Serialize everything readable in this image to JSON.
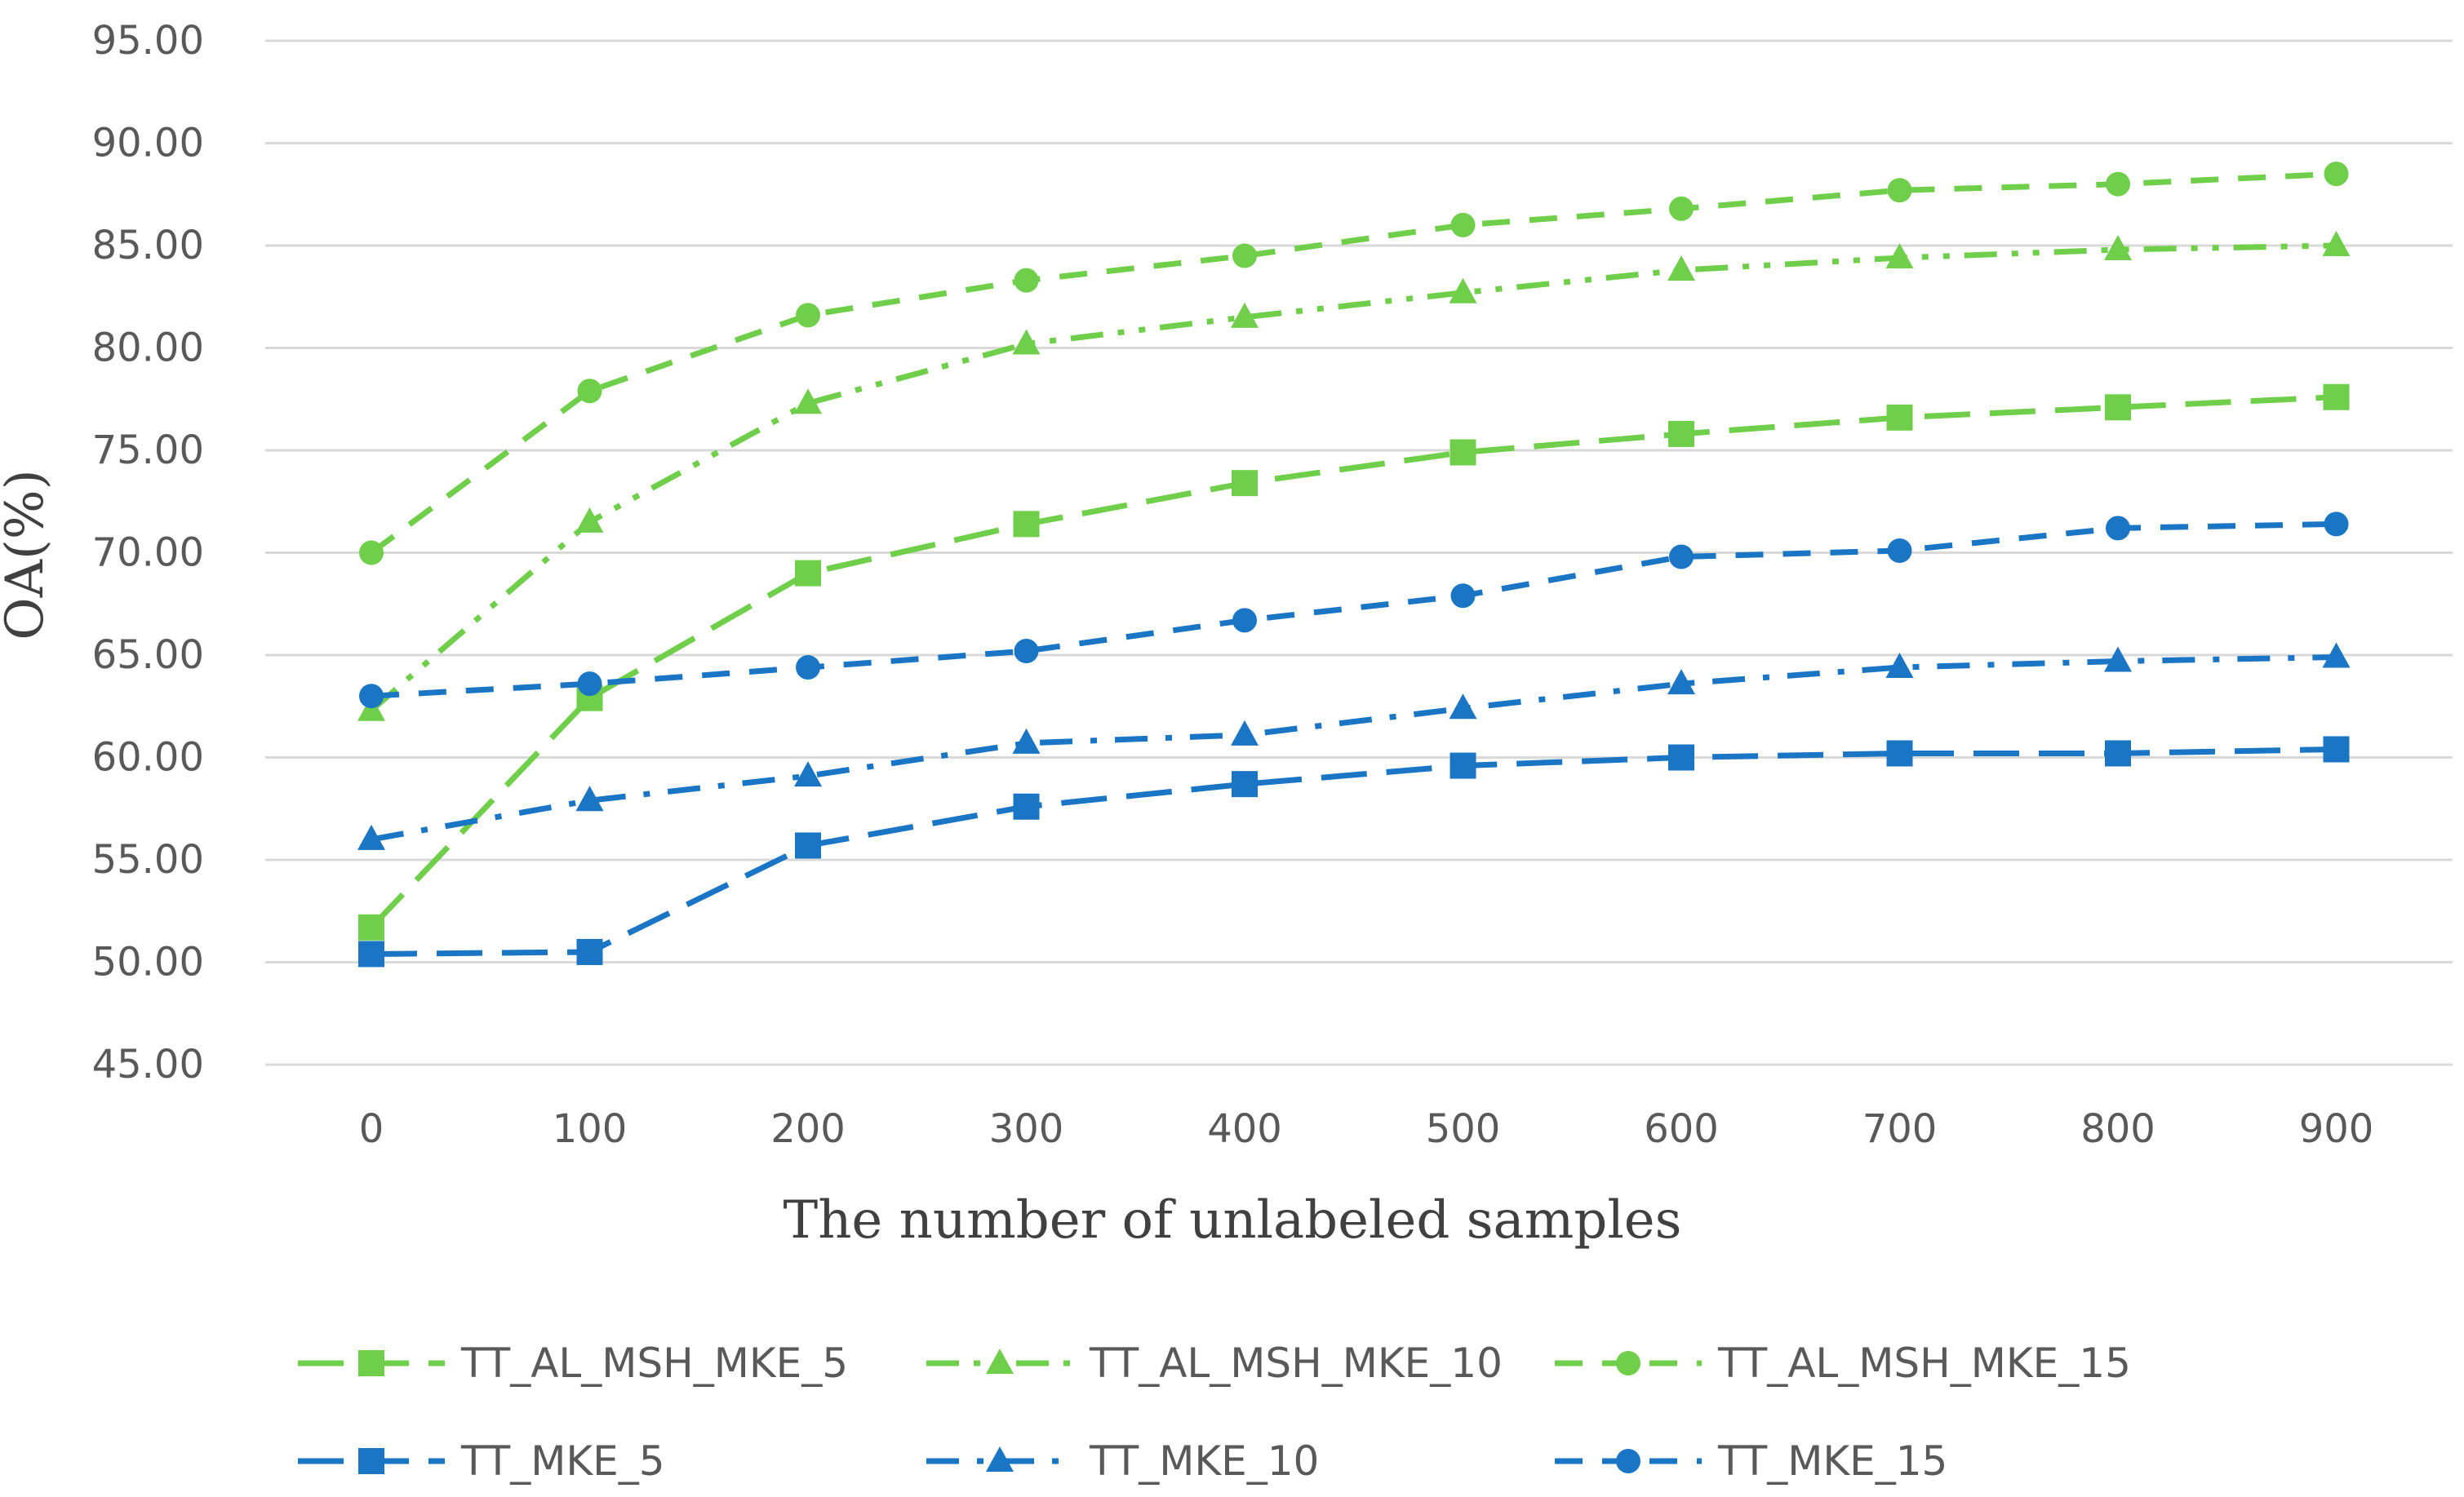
{
  "chart_data": {
    "type": "line",
    "title": "",
    "xlabel": "The number of unlabeled samples",
    "ylabel": "OA(%)",
    "ylim": [
      45,
      95
    ],
    "ytick_step": 5,
    "ytick_decimals": 2,
    "grid": true,
    "legend_position": "bottom",
    "categories": [
      "0",
      "100",
      "200",
      "300",
      "400",
      "500",
      "600",
      "700",
      "800",
      "900"
    ],
    "series": [
      {
        "name": "TT_AL_MSH_MKE_5",
        "color": "#6fcf4a",
        "marker": "square",
        "dash": "long-dash",
        "values": [
          51.7,
          62.9,
          69.0,
          71.4,
          73.4,
          74.9,
          75.8,
          76.6,
          77.1,
          77.6
        ]
      },
      {
        "name": "TT_AL_MSH_MKE_10",
        "color": "#6fcf4a",
        "marker": "triangle",
        "dash": "dash-dot-dot",
        "values": [
          62.3,
          71.5,
          77.3,
          80.2,
          81.5,
          82.7,
          83.8,
          84.4,
          84.8,
          85.0
        ]
      },
      {
        "name": "TT_AL_MSH_MKE_15",
        "color": "#6fcf4a",
        "marker": "circle",
        "dash": "dash",
        "values": [
          70.0,
          77.9,
          81.6,
          83.3,
          84.5,
          86.0,
          86.8,
          87.7,
          88.0,
          88.5
        ]
      },
      {
        "name": "TT_MKE_5",
        "color": "#1a75c4",
        "marker": "square",
        "dash": "long-dash",
        "values": [
          50.4,
          50.5,
          55.7,
          57.6,
          58.7,
          59.6,
          60.0,
          60.2,
          60.2,
          60.4
        ]
      },
      {
        "name": "TT_MKE_10",
        "color": "#1a75c4",
        "marker": "triangle",
        "dash": "dash-dot",
        "values": [
          56.0,
          57.9,
          59.1,
          60.7,
          61.1,
          62.4,
          63.6,
          64.4,
          64.7,
          64.9
        ]
      },
      {
        "name": "TT_MKE_15",
        "color": "#1a75c4",
        "marker": "circle",
        "dash": "dash",
        "values": [
          63.0,
          63.6,
          64.4,
          65.2,
          66.7,
          67.9,
          69.8,
          70.1,
          71.2,
          71.4
        ]
      }
    ]
  }
}
